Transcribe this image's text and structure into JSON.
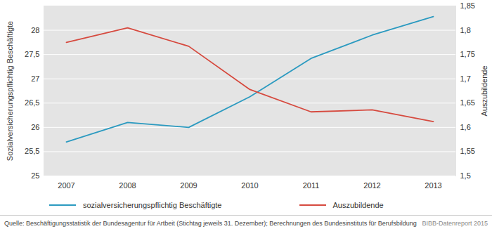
{
  "chart_data": {
    "type": "line",
    "categories": [
      "2007",
      "2008",
      "2009",
      "2010",
      "2011",
      "2012",
      "2013"
    ],
    "series": [
      {
        "name": "sozialversicherungspflichtig Beschäftigte",
        "color": "#2b9ac0",
        "values": [
          25.7,
          26.1,
          26.0,
          26.63,
          27.42,
          27.9,
          28.28
        ]
      },
      {
        "name": "Auszubildende",
        "color": "#d64a3f",
        "axis": "y2",
        "values": [
          1.775,
          1.805,
          1.767,
          1.678,
          1.632,
          1.636,
          1.612
        ]
      }
    ],
    "ylabel": "Sozialversicherungspflichtig Beschäftigte",
    "y2label": "Auszubildende",
    "ylim": [
      25,
      28.5
    ],
    "yticks": [
      25,
      {
        "value": 25.5,
        "label": "25,5"
      },
      26,
      {
        "value": 26.5,
        "label": "26,5"
      },
      27,
      {
        "value": 27.5,
        "label": "27,5"
      },
      28
    ],
    "y2lim": [
      1.5,
      1.85
    ],
    "y2ticks": [
      {
        "value": 1.5,
        "label": "1,5"
      },
      {
        "value": 1.55,
        "label": "1,55"
      },
      {
        "value": 1.6,
        "label": "1,6"
      },
      {
        "value": 1.65,
        "label": "1,65"
      },
      {
        "value": 1.7,
        "label": "1,7"
      },
      {
        "value": 1.75,
        "label": "1,75"
      },
      {
        "value": 1.8,
        "label": "1,8"
      },
      {
        "value": 1.85,
        "label": "1,85"
      }
    ],
    "grid": true,
    "legend": "bottom",
    "source": "Quelle: Beschäftigungsstatistik der Bundesagentur für Artbeit (Stichtag jeweils 31. Dezember); Berechnungen des Bundesinstituts für Berufsbildung",
    "credit": "BIBB-Datenreport 2015"
  }
}
